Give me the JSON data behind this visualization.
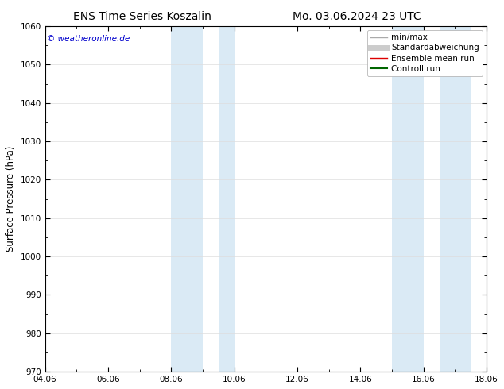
{
  "title_left": "ENS Time Series Koszalin",
  "title_right": "Mo. 03.06.2024 23 UTC",
  "ylabel": "Surface Pressure (hPa)",
  "ylim": [
    970,
    1060
  ],
  "yticks": [
    970,
    980,
    990,
    1000,
    1010,
    1020,
    1030,
    1040,
    1050,
    1060
  ],
  "xlim_start": 0,
  "xlim_end": 14,
  "xtick_labels": [
    "04.06",
    "06.06",
    "08.06",
    "10.06",
    "12.06",
    "14.06",
    "16.06",
    "18.06"
  ],
  "xtick_positions": [
    0,
    2,
    4,
    6,
    8,
    10,
    12,
    14
  ],
  "shaded_bands": [
    {
      "xmin": 4.0,
      "xmax": 5.0
    },
    {
      "xmin": 5.5,
      "xmax": 6.0
    },
    {
      "xmin": 11.0,
      "xmax": 12.0
    },
    {
      "xmin": 12.5,
      "xmax": 13.5
    }
  ],
  "band_color": "#daeaf5",
  "watermark": "© weatheronline.de",
  "legend_entries": [
    {
      "label": "min/max",
      "color": "#aaaaaa",
      "lw": 1.0
    },
    {
      "label": "Standardabweichung",
      "color": "#cccccc",
      "lw": 5.0
    },
    {
      "label": "Ensemble mean run",
      "color": "#dd0000",
      "lw": 1.0
    },
    {
      "label": "Controll run",
      "color": "#006600",
      "lw": 1.5
    }
  ],
  "background_color": "#ffffff",
  "spine_color": "#000000",
  "title_fontsize": 10,
  "tick_fontsize": 7.5,
  "ylabel_fontsize": 8.5,
  "legend_fontsize": 7.5
}
